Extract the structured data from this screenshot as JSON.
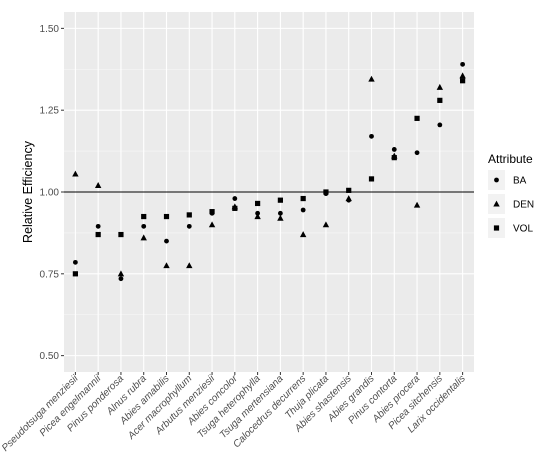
{
  "chart_data": {
    "type": "scatter",
    "xlabel": "",
    "ylabel": "Relative Efficiency",
    "ylim": [
      0.45,
      1.55
    ],
    "yticks": [
      0.5,
      0.75,
      1.0,
      1.25,
      1.5
    ],
    "ytick_labels": [
      "0.50",
      "0.75",
      "1.00",
      "1.25",
      "1.50"
    ],
    "reference_line": 1.0,
    "grid": true,
    "legend_title": "Attribute",
    "legend_position": "right",
    "categories": [
      "Pseudotsuga menziesii",
      "Picea engelmannii",
      "Pinus ponderosa",
      "Alnus rubra",
      "Abies amabilis",
      "Acer macrophyllum",
      "Arbutus menziesii",
      "Abies concolor",
      "Tsuga heterophylla",
      "Tsuga mertensiana",
      "Calocedrus decurrens",
      "Thuja plicata",
      "Abies shastensis",
      "Abies grandis",
      "Pinus contorta",
      "Abies procera",
      "Picea sitchensis",
      "Larix occidentalis"
    ],
    "series": [
      {
        "name": "BA",
        "shape": "circle",
        "values": [
          0.785,
          0.895,
          0.735,
          0.895,
          0.85,
          0.895,
          0.935,
          0.98,
          0.935,
          0.935,
          0.945,
          0.995,
          0.975,
          1.17,
          1.13,
          1.12,
          1.205,
          1.39
        ]
      },
      {
        "name": "DEN",
        "shape": "triangle",
        "values": [
          1.055,
          1.02,
          0.75,
          0.86,
          0.775,
          0.775,
          0.9,
          0.955,
          0.925,
          0.92,
          0.87,
          0.9,
          0.98,
          1.345,
          1.11,
          0.96,
          1.32,
          1.355
        ]
      },
      {
        "name": "VOL",
        "shape": "square",
        "values": [
          0.75,
          0.87,
          0.87,
          0.925,
          0.925,
          0.93,
          0.94,
          0.95,
          0.965,
          0.975,
          0.98,
          1.0,
          1.005,
          1.04,
          1.105,
          1.225,
          1.28,
          1.34
        ]
      }
    ]
  }
}
